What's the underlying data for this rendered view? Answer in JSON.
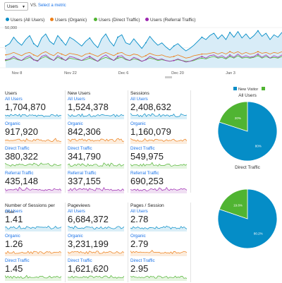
{
  "toolbar": {
    "metric_select": "Users",
    "vs": "VS.",
    "select_metric": "Select a metric"
  },
  "legend": [
    {
      "label": "Users (All Users)",
      "color": "#058dc7"
    },
    {
      "label": "Users (Organic)",
      "color": "#ed7e17"
    },
    {
      "label": "Users (Direct Traffic)",
      "color": "#50b432"
    },
    {
      "label": "Users (Referral Traffic)",
      "color": "#9c27b0"
    }
  ],
  "chart_data": {
    "type": "line",
    "y_ticks": [
      "50,000",
      "25,000"
    ],
    "ylim": [
      0,
      50000
    ],
    "x_ticks": [
      "Nov 8",
      "Nov 22",
      "Dec 6",
      "Dec 20",
      "Jan 3"
    ],
    "series": [
      {
        "name": "Users (All Users)",
        "values": [
          27000,
          30000,
          38000,
          32000,
          28000,
          35000,
          40000,
          30000,
          26000,
          37000,
          42000,
          33000,
          29000,
          40000,
          34000,
          28000,
          38000,
          35000,
          31000,
          27000,
          33000,
          37000,
          30000,
          25000,
          36000,
          42000,
          33000,
          27000,
          38000,
          41000,
          31000,
          29000,
          36000,
          30000,
          24000,
          31000,
          39000,
          33000,
          28000,
          31000,
          26000,
          22000,
          27000,
          30000,
          25000,
          21000,
          24000,
          28000,
          33000,
          38000,
          35000,
          40000,
          43000,
          36000,
          41000,
          35000,
          44000,
          38000,
          45000,
          37000,
          42000,
          36000,
          40000,
          46000,
          39000,
          43000,
          35000,
          41000,
          38000,
          44000
        ]
      },
      {
        "name": "Users (Organic)",
        "values": [
          16000,
          17000,
          19000,
          17000,
          15000,
          18000,
          19000,
          16000,
          14000,
          18000,
          20000,
          17000,
          15000,
          19000,
          17000,
          15000,
          18000,
          17000,
          16000,
          14000,
          17000,
          18000,
          16000,
          14000,
          17000,
          19000,
          17000,
          15000,
          18000,
          19000,
          16000,
          15000,
          17000,
          16000,
          13000,
          15000,
          18000,
          16000,
          15000,
          16000,
          14000,
          13000,
          14000,
          16000,
          14000,
          12000,
          13000,
          15000,
          16000,
          17000,
          17000,
          18000,
          19000,
          17000,
          19000,
          17000,
          20000,
          18000,
          20000,
          17000,
          19000,
          17000,
          18000,
          20000,
          18000,
          19000,
          17000,
          19000,
          18000,
          20000
        ]
      },
      {
        "name": "Users (Direct Traffic)",
        "values": [
          9000,
          10000,
          12000,
          10000,
          9000,
          11000,
          13000,
          10000,
          9000,
          12000,
          14000,
          11000,
          9000,
          13000,
          11000,
          9000,
          12000,
          11000,
          10000,
          9000,
          10000,
          12000,
          10000,
          8000,
          11000,
          13000,
          11000,
          9000,
          12000,
          13000,
          10000,
          9000,
          11000,
          10000,
          8000,
          10000,
          12000,
          11000,
          9000,
          10000,
          9000,
          8000,
          9000,
          10000,
          9000,
          8000,
          8000,
          9000,
          11000,
          12000,
          11000,
          13000,
          14000,
          12000,
          13000,
          11000,
          14000,
          12000,
          15000,
          12000,
          13000,
          12000,
          13000,
          15000,
          12000,
          14000,
          12000,
          13000,
          12000,
          14000
        ]
      },
      {
        "name": "Users (Referral Traffic)",
        "values": [
          10000,
          11000,
          14000,
          11000,
          9000,
          13000,
          15000,
          10000,
          8000,
          14000,
          16000,
          12000,
          9000,
          15000,
          12000,
          9000,
          14000,
          13000,
          11000,
          9000,
          12000,
          14000,
          11000,
          8000,
          13000,
          16000,
          12000,
          9000,
          14000,
          15000,
          11000,
          9000,
          13000,
          11000,
          8000,
          10000,
          14000,
          12000,
          10000,
          11000,
          9000,
          8000,
          9000,
          11000,
          9000,
          7000,
          8000,
          10000,
          12000,
          14000,
          12000,
          15000,
          16000,
          13000,
          15000,
          12000,
          16000,
          13000,
          17000,
          13000,
          15000,
          13000,
          14000,
          17000,
          13000,
          16000,
          12000,
          15000,
          13000,
          16000
        ]
      }
    ]
  },
  "metrics": [
    {
      "title": "Users",
      "rows": [
        {
          "label": "All Users",
          "value": "1,704,870"
        },
        {
          "label": "Organic",
          "value": "917,920"
        },
        {
          "label": "Direct Traffic",
          "value": "380,322"
        },
        {
          "label": "Referral Traffic",
          "value": "435,148"
        }
      ]
    },
    {
      "title": "New Users",
      "rows": [
        {
          "label": "All Users",
          "value": "1,524,378"
        },
        {
          "label": "Organic",
          "value": "842,306"
        },
        {
          "label": "Direct Traffic",
          "value": "341,790"
        },
        {
          "label": "Referral Traffic",
          "value": "337,155"
        }
      ]
    },
    {
      "title": "Sessions",
      "rows": [
        {
          "label": "All Users",
          "value": "2,408,632"
        },
        {
          "label": "Organic",
          "value": "1,160,079"
        },
        {
          "label": "Direct Traffic",
          "value": "549,975"
        },
        {
          "label": "Referral Traffic",
          "value": "690,253"
        }
      ]
    },
    {
      "title": "Number of Sessions per User",
      "rows": [
        {
          "label": "All Users",
          "value": "1.41"
        },
        {
          "label": "Organic",
          "value": "1.26"
        },
        {
          "label": "Direct Traffic",
          "value": "1.45"
        }
      ]
    },
    {
      "title": "Pageviews",
      "rows": [
        {
          "label": "All Users",
          "value": "6,684,372"
        },
        {
          "label": "Organic",
          "value": "3,231,199"
        },
        {
          "label": "Direct Traffic",
          "value": "1,621,620"
        }
      ]
    },
    {
      "title": "Pages / Session",
      "rows": [
        {
          "label": "All Users",
          "value": "2.78"
        },
        {
          "label": "Organic",
          "value": "2.79"
        },
        {
          "label": "Direct Traffic",
          "value": "2.95"
        }
      ]
    }
  ],
  "row_colors": [
    "#058dc7",
    "#ed7e17",
    "#50b432",
    "#9c27b0"
  ],
  "pie_legend": [
    {
      "label": "New Visitor",
      "color": "#058dc7"
    },
    {
      "label": "",
      "color": "#50b432"
    }
  ],
  "pies": [
    {
      "title": "All Users",
      "slices": [
        {
          "label": "80%",
          "value": 80,
          "color": "#058dc7"
        },
        {
          "label": "20%",
          "value": 20,
          "color": "#50b432"
        }
      ]
    },
    {
      "title": "Direct Traffic",
      "slices": [
        {
          "label": "80.2%",
          "value": 80.2,
          "color": "#058dc7"
        },
        {
          "label": "19.8%",
          "value": 19.8,
          "color": "#50b432"
        }
      ]
    }
  ]
}
